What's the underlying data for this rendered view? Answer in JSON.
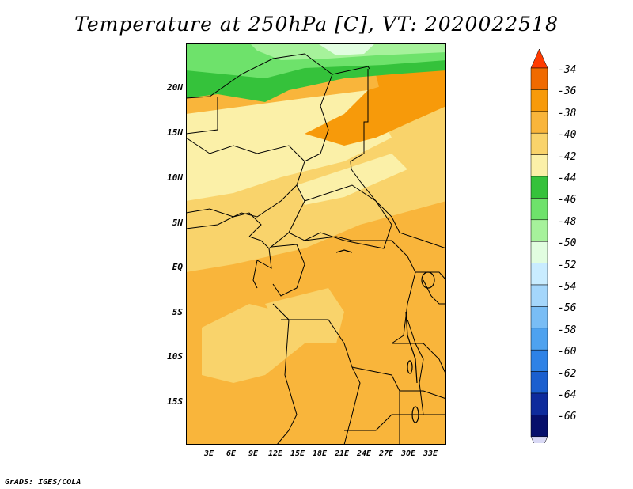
{
  "title": "Temperature at 250hPa [C], VT: 2020022518",
  "credit": "GrADS: IGES/COLA",
  "lat_labels": [
    "20N",
    "15N",
    "10N",
    "5N",
    "EQ",
    "5S",
    "10S",
    "15S"
  ],
  "lon_labels": [
    "3E",
    "6E",
    "9E",
    "12E",
    "15E",
    "18E",
    "21E",
    "24E",
    "27E",
    "30E",
    "33E"
  ],
  "colorbar": {
    "labels": [
      "-34",
      "-36",
      "-38",
      "-40",
      "-42",
      "-44",
      "-46",
      "-48",
      "-50",
      "-52",
      "-54",
      "-56",
      "-58",
      "-60",
      "-62",
      "-64",
      "-66"
    ],
    "colors": [
      "#ff3b00",
      "#f06a00",
      "#f79a0a",
      "#f9b53b",
      "#f9d36b",
      "#fbf0a8",
      "#35c23b",
      "#6ee26b",
      "#a6f29b",
      "#e1fde0",
      "#c9ecff",
      "#a4d6fb",
      "#79bdf5",
      "#4ea2ef",
      "#2e82e6",
      "#1b5fcf",
      "#0e2b9c",
      "#060f6b",
      "#d9d9f5"
    ]
  }
}
